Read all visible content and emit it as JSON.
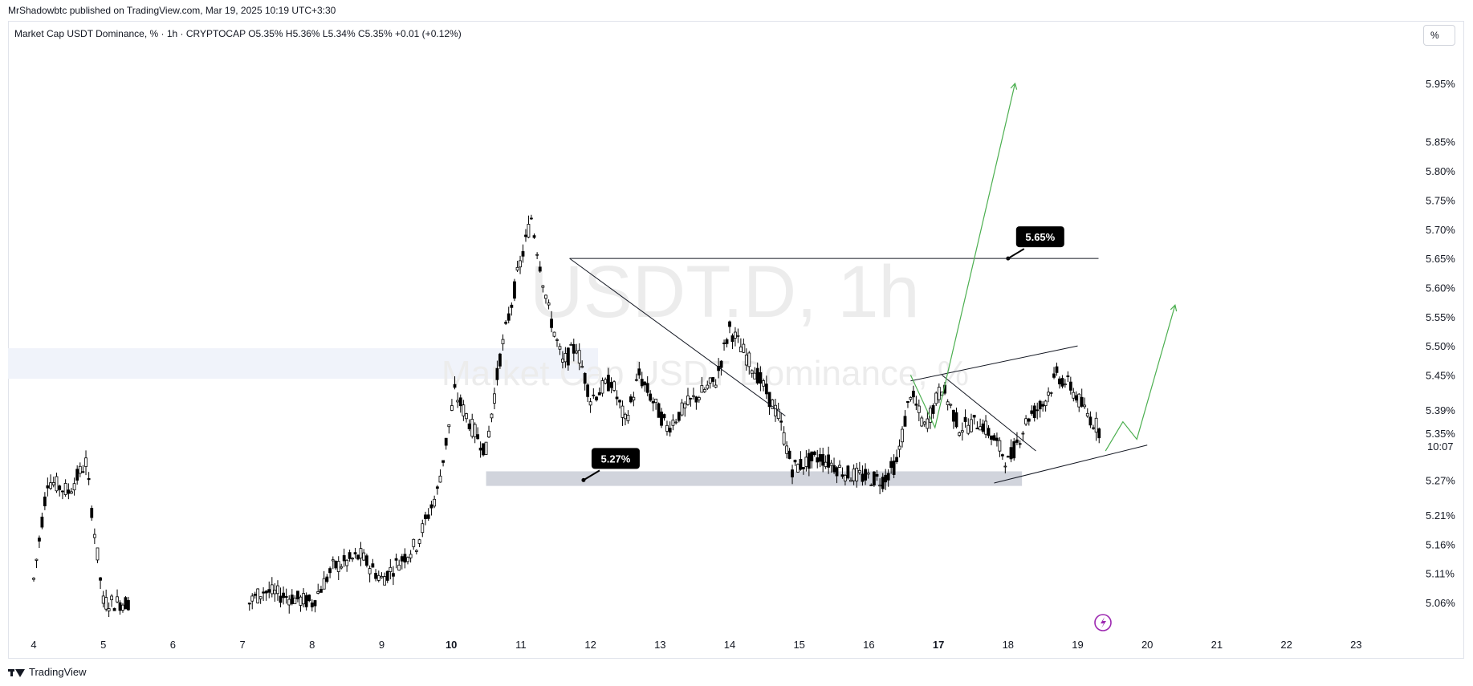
{
  "header": {
    "published": "MrShadowbtc published on TradingView.com, Mar 19, 2025 10:19 UTC+3:30",
    "legend": "Market Cap USDT Dominance, % · 1h · CRYPTOCAP  O5.35%  H5.36%  L5.34%  C5.35%  +0.01 (+0.12%)",
    "scale_button": "%"
  },
  "watermark": {
    "symbol": "USDT.D, 1h",
    "name": "Market Cap USDT Dominance, %"
  },
  "footer": {
    "brand": "TradingView"
  },
  "colors": {
    "candle": "#000000",
    "projection": "#4caf50",
    "zone": "#d1d4dc",
    "label_bg": "#000000",
    "alert": "#9c27b0"
  },
  "icons": {
    "alert": "lightning-icon",
    "brand": "tradingview-logo-icon"
  },
  "chart_data": {
    "type": "line",
    "title": "Market Cap USDT Dominance, %",
    "interval": "1h",
    "y_axis": {
      "scale": "percent",
      "ticks": [
        "5.95%",
        "5.85%",
        "5.80%",
        "5.75%",
        "5.70%",
        "5.65%",
        "5.60%",
        "5.55%",
        "5.50%",
        "5.45%",
        "5.39%",
        "5.35%",
        "5.27%",
        "5.21%",
        "5.16%",
        "5.11%",
        "5.06%"
      ],
      "current_price": "5.35%",
      "countdown": "10:07"
    },
    "x_axis": {
      "ticks": [
        "4",
        "5",
        "6",
        "7",
        "8",
        "9",
        "10",
        "11",
        "12",
        "13",
        "14",
        "15",
        "16",
        "17",
        "18",
        "19",
        "20",
        "21",
        "22",
        "23"
      ],
      "bold_ticks": [
        "10",
        "17"
      ]
    },
    "price_path": [
      [
        4.0,
        5.1
      ],
      [
        4.2,
        5.27
      ],
      [
        4.5,
        5.25
      ],
      [
        4.75,
        5.3
      ],
      [
        5.0,
        5.06
      ],
      [
        5.4,
        5.06
      ],
      [
        7.1,
        5.06
      ],
      [
        7.3,
        5.08
      ],
      [
        8.0,
        5.06
      ],
      [
        8.3,
        5.12
      ],
      [
        8.7,
        5.14
      ],
      [
        9.0,
        5.1
      ],
      [
        9.5,
        5.16
      ],
      [
        9.8,
        5.25
      ],
      [
        10.05,
        5.42
      ],
      [
        10.3,
        5.36
      ],
      [
        10.5,
        5.32
      ],
      [
        10.7,
        5.48
      ],
      [
        10.95,
        5.62
      ],
      [
        11.15,
        5.72
      ],
      [
        11.4,
        5.56
      ],
      [
        11.6,
        5.47
      ],
      [
        11.8,
        5.5
      ],
      [
        12.0,
        5.41
      ],
      [
        12.3,
        5.44
      ],
      [
        12.5,
        5.37
      ],
      [
        12.7,
        5.45
      ],
      [
        13.1,
        5.36
      ],
      [
        13.4,
        5.4
      ],
      [
        13.8,
        5.44
      ],
      [
        14.0,
        5.53
      ],
      [
        14.4,
        5.45
      ],
      [
        14.7,
        5.38
      ],
      [
        14.9,
        5.29
      ],
      [
        15.3,
        5.31
      ],
      [
        15.7,
        5.28
      ],
      [
        16.2,
        5.27
      ],
      [
        16.4,
        5.3
      ],
      [
        16.6,
        5.42
      ],
      [
        16.8,
        5.36
      ],
      [
        17.05,
        5.43
      ],
      [
        17.3,
        5.36
      ],
      [
        17.6,
        5.37
      ],
      [
        17.8,
        5.34
      ],
      [
        18.0,
        5.3
      ],
      [
        18.3,
        5.38
      ],
      [
        18.5,
        5.4
      ],
      [
        18.7,
        5.45
      ],
      [
        18.9,
        5.43
      ],
      [
        19.1,
        5.39
      ],
      [
        19.35,
        5.35
      ]
    ],
    "annotations": [
      {
        "type": "label",
        "text": "5.65%",
        "x": 18.0,
        "y": 5.65
      },
      {
        "type": "label",
        "text": "5.27%",
        "x": 11.9,
        "y": 5.27
      },
      {
        "type": "hline",
        "y": 5.65,
        "x_from": 11.7,
        "x_to": 19.3
      },
      {
        "type": "zone",
        "y_from": 5.26,
        "y_to": 5.285,
        "x_from": 10.5,
        "x_to": 18.2
      },
      {
        "type": "trendline",
        "points": [
          [
            11.7,
            5.65
          ],
          [
            14.8,
            5.38
          ]
        ]
      },
      {
        "type": "channel_upper",
        "points": [
          [
            16.6,
            5.44
          ],
          [
            19.0,
            5.5
          ]
        ]
      },
      {
        "type": "channel_lower",
        "points": [
          [
            17.8,
            5.265
          ],
          [
            20.0,
            5.33
          ]
        ]
      },
      {
        "type": "trendline",
        "points": [
          [
            17.05,
            5.45
          ],
          [
            18.4,
            5.32
          ]
        ]
      },
      {
        "type": "projection_1",
        "points": [
          [
            16.6,
            5.45
          ],
          [
            16.95,
            5.36
          ],
          [
            18.1,
            5.95
          ]
        ]
      },
      {
        "type": "projection_2",
        "points": [
          [
            19.4,
            5.32
          ],
          [
            19.65,
            5.37
          ],
          [
            19.85,
            5.34
          ],
          [
            20.4,
            5.57
          ]
        ]
      }
    ]
  }
}
